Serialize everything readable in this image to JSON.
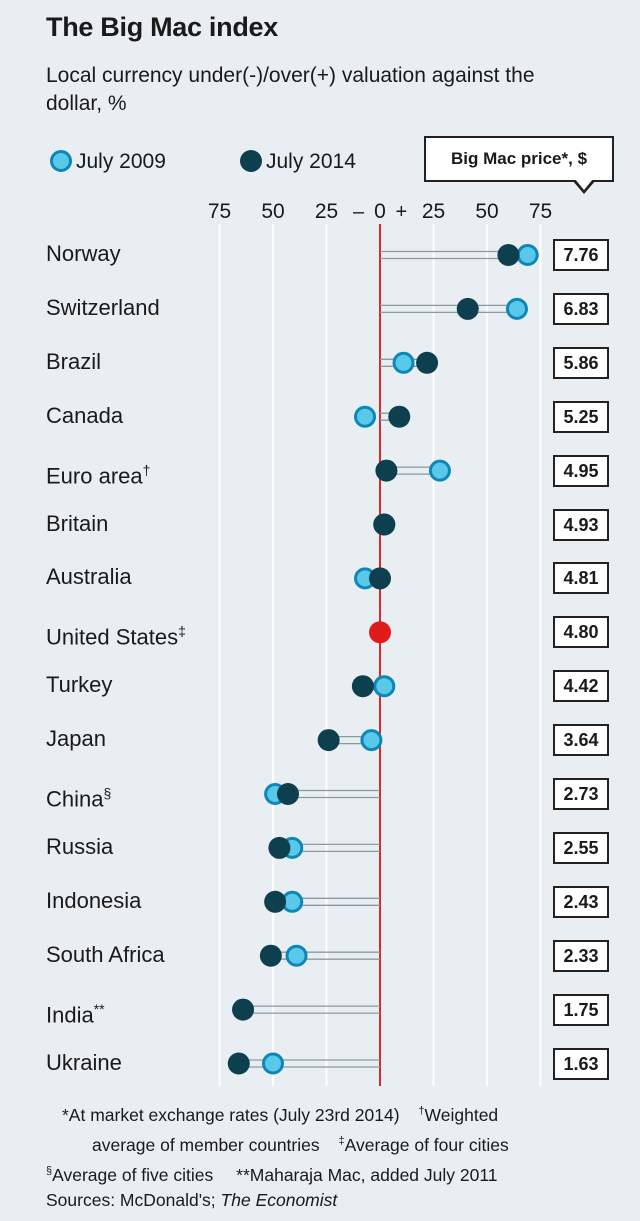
{
  "title": "The Big Mac index",
  "subtitle": "Local currency under(-)/over(+) valuation against the dollar, %",
  "legend": {
    "series_2009": "July 2009",
    "series_2014": "July 2014",
    "price_header": "Big Mac price*, $"
  },
  "colors": {
    "series_2009": "#59c9ea",
    "series_2009_stroke": "#0f86b8",
    "series_2014": "#0d3f4f",
    "baseline": "#d62b2b",
    "united_states": "#e01b1b",
    "gridline": "#ffffff"
  },
  "chart_data": {
    "type": "dot",
    "title": "The Big Mac index",
    "xlabel": "Local currency under(-)/over(+) valuation against the dollar, %",
    "xlim": [
      -80,
      80
    ],
    "ticks": [
      {
        "value": -75,
        "label": "75"
      },
      {
        "value": -50,
        "label": "50"
      },
      {
        "value": -25,
        "label": "25"
      },
      {
        "value": -10,
        "label": "–"
      },
      {
        "value": 0,
        "label": "0"
      },
      {
        "value": 10,
        "label": "+"
      },
      {
        "value": 25,
        "label": "25"
      },
      {
        "value": 50,
        "label": "50"
      },
      {
        "value": 75,
        "label": "75"
      }
    ],
    "series": [
      {
        "name": "July 2009",
        "key": "v2009"
      },
      {
        "name": "July 2014",
        "key": "v2014"
      }
    ],
    "rows": [
      {
        "country": "Norway",
        "mark": "",
        "v2009": 69,
        "v2014": 60,
        "price": "7.76"
      },
      {
        "country": "Switzerland",
        "mark": "",
        "v2009": 64,
        "v2014": 41,
        "price": "6.83"
      },
      {
        "country": "Brazil",
        "mark": "",
        "v2009": 11,
        "v2014": 22,
        "price": "5.86"
      },
      {
        "country": "Canada",
        "mark": "",
        "v2009": -7,
        "v2014": 9,
        "price": "5.25"
      },
      {
        "country": "Euro area",
        "mark": "†",
        "v2009": 28,
        "v2014": 3,
        "price": "4.95"
      },
      {
        "country": "Britain",
        "mark": "",
        "v2009": 2,
        "v2014": 2,
        "price": "4.93"
      },
      {
        "country": "Australia",
        "mark": "",
        "v2009": -7,
        "v2014": 0,
        "price": "4.81"
      },
      {
        "country": "United States",
        "mark": "‡",
        "v2009": 0,
        "v2014": 0,
        "price": "4.80"
      },
      {
        "country": "Turkey",
        "mark": "",
        "v2009": 2,
        "v2014": -8,
        "price": "4.42"
      },
      {
        "country": "Japan",
        "mark": "",
        "v2009": -4,
        "v2014": -24,
        "price": "3.64"
      },
      {
        "country": "China",
        "mark": "§",
        "v2009": -49,
        "v2014": -43,
        "price": "2.73"
      },
      {
        "country": "Russia",
        "mark": "",
        "v2009": -41,
        "v2014": -47,
        "price": "2.55"
      },
      {
        "country": "Indonesia",
        "mark": "",
        "v2009": -41,
        "v2014": -49,
        "price": "2.43"
      },
      {
        "country": "South Africa",
        "mark": "",
        "v2009": -39,
        "v2014": -51,
        "price": "2.33"
      },
      {
        "country": "India",
        "mark": "**",
        "v2009": null,
        "v2014": -64,
        "price": "1.75"
      },
      {
        "country": "Ukraine",
        "mark": "",
        "v2009": -50,
        "v2014": -66,
        "price": "1.63"
      }
    ]
  },
  "footnotes": {
    "line1": "*At market exchange rates (July 23rd 2014)",
    "line1b_mark": "†",
    "line1b": "Weighted",
    "line2": "average of member countries",
    "line2_mark": "‡",
    "line2b": "Average of four cities",
    "line3_mark": "§",
    "line3": "Average of five cities",
    "line3b": "**Maharaja Mac, added July 2011",
    "sources_label": "Sources: McDonald's;",
    "sources_italic": "The Economist"
  }
}
